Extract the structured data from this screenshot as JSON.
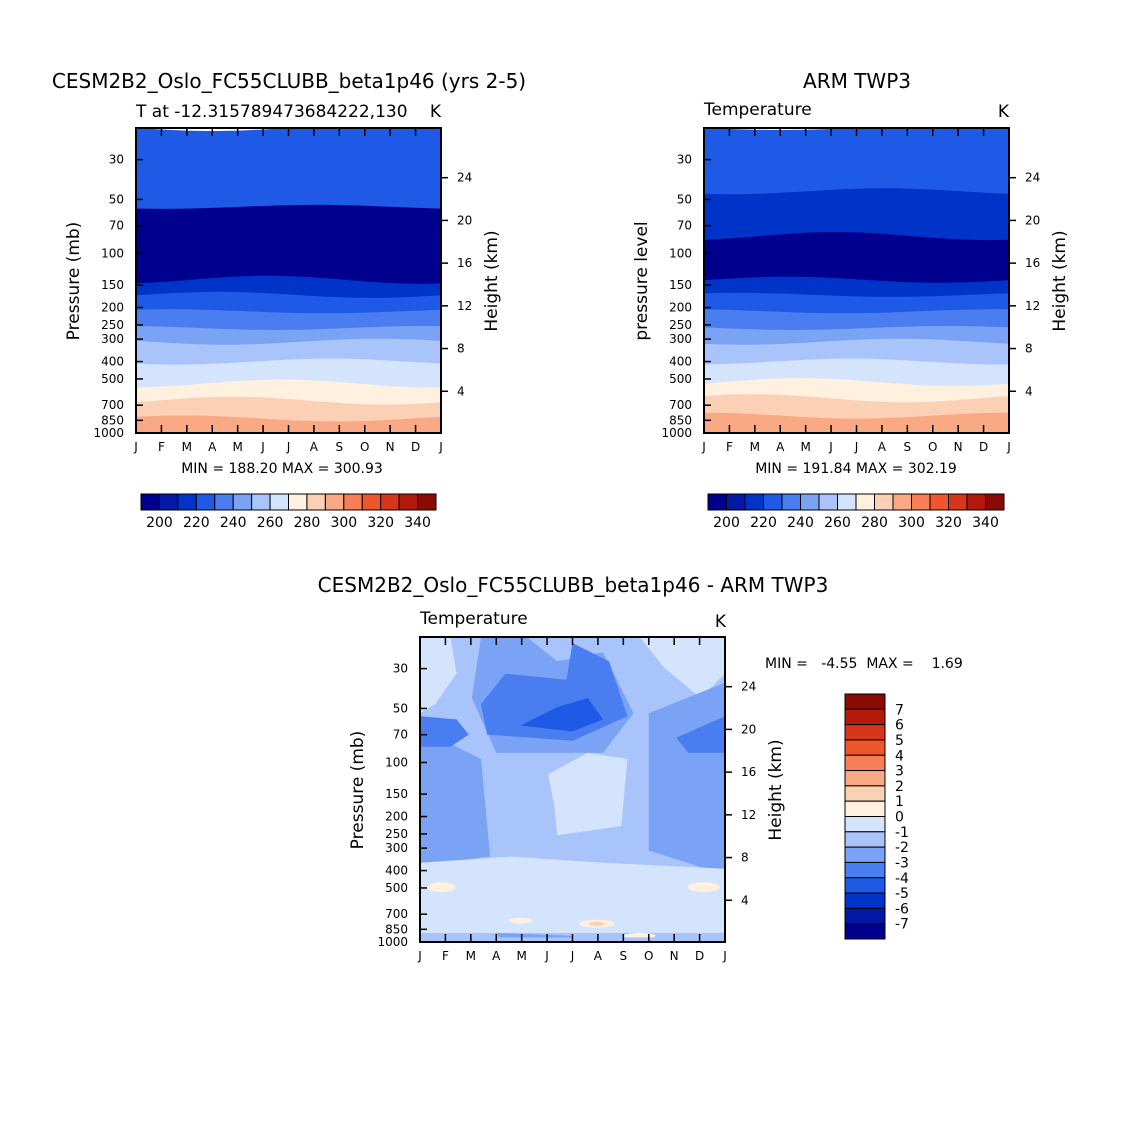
{
  "chart_data": [
    {
      "type": "heatmap",
      "id": "model",
      "title": "CESM2B2_Oslo_FC55CLUBB_beta1p46 (yrs 2-5)",
      "subtitle_left": "T at -12.315789473684222,130",
      "subtitle_right": "K",
      "ylabel": "Pressure (mb)",
      "ylabel_right": "Height (km)",
      "x_ticks": [
        "J",
        "F",
        "M",
        "A",
        "M",
        "J",
        "J",
        "A",
        "S",
        "O",
        "N",
        "D",
        "J"
      ],
      "y_ticks": [
        30,
        50,
        70,
        100,
        150,
        200,
        250,
        300,
        400,
        500,
        700,
        850,
        1000
      ],
      "y_ticks_right": [
        24,
        20,
        16,
        12,
        8,
        4
      ],
      "stats_text": "MIN = 188.20  MAX = 300.93",
      "min": 188.2,
      "max": 300.93,
      "colorbar": {
        "levels": [
          195,
          200,
          210,
          220,
          230,
          240,
          250,
          260,
          270,
          280,
          290,
          300,
          310,
          320,
          330,
          340
        ],
        "labels": [
          200,
          220,
          240,
          260,
          280,
          300,
          320,
          340
        ]
      },
      "bands": [
        {
          "top": 20,
          "bot": 55,
          "temp": 220
        },
        {
          "top": 55,
          "bot": 140,
          "temp": 195
        },
        {
          "top": 140,
          "bot": 170,
          "temp": 210
        },
        {
          "top": 170,
          "bot": 210,
          "temp": 220
        },
        {
          "top": 210,
          "bot": 260,
          "temp": 230
        },
        {
          "top": 260,
          "bot": 310,
          "temp": 240
        },
        {
          "top": 310,
          "bot": 400,
          "temp": 250
        },
        {
          "top": 400,
          "bot": 530,
          "temp": 260
        },
        {
          "top": 530,
          "bot": 660,
          "temp": 270
        },
        {
          "top": 660,
          "bot": 830,
          "temp": 280
        },
        {
          "top": 830,
          "bot": 1000,
          "temp": 290
        }
      ]
    },
    {
      "type": "heatmap",
      "id": "obs",
      "title": "ARM TWP3",
      "subtitle_left": "Temperature",
      "subtitle_right": "K",
      "ylabel": "pressure level",
      "ylabel_right": "Height (km)",
      "x_ticks": [
        "J",
        "F",
        "M",
        "A",
        "M",
        "J",
        "J",
        "A",
        "S",
        "O",
        "N",
        "D",
        "J"
      ],
      "y_ticks": [
        30,
        50,
        70,
        100,
        150,
        200,
        250,
        300,
        400,
        500,
        700,
        850,
        1000
      ],
      "y_ticks_right": [
        24,
        20,
        16,
        12,
        8,
        4
      ],
      "stats_text": "MIN = 191.84  MAX = 302.19",
      "min": 191.84,
      "max": 302.19,
      "colorbar": {
        "levels": [
          195,
          200,
          210,
          220,
          230,
          240,
          250,
          260,
          270,
          280,
          290,
          300,
          310,
          320,
          330,
          340
        ],
        "labels": [
          200,
          220,
          240,
          260,
          280,
          300,
          320,
          340
        ]
      },
      "bands": [
        {
          "top": 20,
          "bot": 45,
          "temp": 220
        },
        {
          "top": 45,
          "bot": 80,
          "temp": 210
        },
        {
          "top": 80,
          "bot": 140,
          "temp": 195
        },
        {
          "top": 140,
          "bot": 170,
          "temp": 210
        },
        {
          "top": 170,
          "bot": 210,
          "temp": 220
        },
        {
          "top": 210,
          "bot": 260,
          "temp": 230
        },
        {
          "top": 260,
          "bot": 310,
          "temp": 240
        },
        {
          "top": 310,
          "bot": 400,
          "temp": 250
        },
        {
          "top": 400,
          "bot": 520,
          "temp": 260
        },
        {
          "top": 520,
          "bot": 640,
          "temp": 270
        },
        {
          "top": 640,
          "bot": 800,
          "temp": 280
        },
        {
          "top": 800,
          "bot": 1000,
          "temp": 290
        }
      ]
    },
    {
      "type": "heatmap",
      "id": "diff",
      "title": "CESM2B2_Oslo_FC55CLUBB_beta1p46 - ARM TWP3",
      "subtitle_left": "Temperature",
      "subtitle_right": "K",
      "ylabel": "Pressure (mb)",
      "ylabel_right": "Height (km)",
      "x_ticks": [
        "J",
        "F",
        "M",
        "A",
        "M",
        "J",
        "J",
        "A",
        "S",
        "O",
        "N",
        "D",
        "J"
      ],
      "y_ticks": [
        30,
        50,
        70,
        100,
        150,
        200,
        250,
        300,
        400,
        500,
        700,
        850,
        1000
      ],
      "y_ticks_right": [
        24,
        20,
        16,
        12,
        8,
        4
      ],
      "stats_text": "MIN =   -4.55  MAX =    1.69",
      "min": -4.55,
      "max": 1.69,
      "colorbar": {
        "levels": [
          8,
          7,
          6,
          5,
          4,
          3,
          2,
          1,
          0,
          -1,
          -2,
          -3,
          -4,
          -5,
          -6,
          -7,
          -8
        ],
        "labels": [
          7,
          6,
          5,
          4,
          3,
          2,
          1,
          0,
          -1,
          -2,
          -3,
          -4,
          -5,
          -6,
          -7
        ]
      }
    }
  ],
  "colors": {
    "temp_palette": [
      "#00008f",
      "#001aa6",
      "#0033c7",
      "#1f5ae6",
      "#4a7df0",
      "#7aa2f5",
      "#a9c4fa",
      "#d4e4fc",
      "#fff0e0",
      "#fcd0b4",
      "#faa985",
      "#f87f55",
      "#f0562c",
      "#d8361a",
      "#b31a0c",
      "#8a0a04"
    ],
    "diff_palette_top_to_bottom": [
      "#8a0a04",
      "#b31a0c",
      "#d8361a",
      "#f0562c",
      "#f87f55",
      "#faa985",
      "#fcd0b4",
      "#fff0e0",
      "#d4e4fc",
      "#a9c4fa",
      "#7aa2f5",
      "#4a7df0",
      "#1f5ae6",
      "#0033c7",
      "#001aa6",
      "#00008f"
    ]
  }
}
